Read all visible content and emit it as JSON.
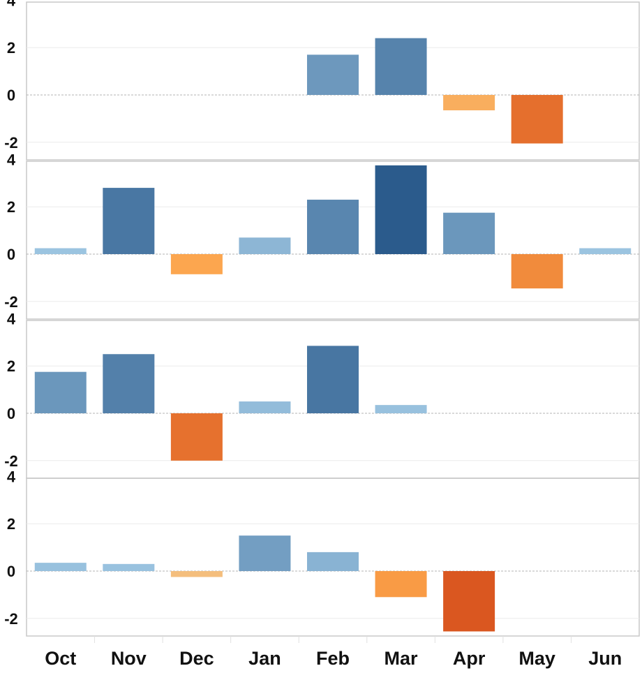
{
  "chart_data": {
    "type": "bar",
    "categories": [
      "Oct",
      "Nov",
      "Dec",
      "Jan",
      "Feb",
      "Mar",
      "Apr",
      "May",
      "Jun"
    ],
    "ylim": [
      -2.6,
      4.4
    ],
    "yticks": [
      4,
      2,
      0,
      -2
    ],
    "grid": true,
    "zero_line": "dashed",
    "color_scale": "diverging blue (positive) / orange (negative)",
    "panels": [
      {
        "values": [
          null,
          null,
          null,
          null,
          1.7,
          2.4,
          -0.65,
          -2.05,
          null
        ]
      },
      {
        "values": [
          0.25,
          2.8,
          -0.85,
          0.7,
          2.3,
          3.75,
          1.75,
          -1.45,
          0.25
        ]
      },
      {
        "values": [
          1.75,
          2.5,
          -2.0,
          0.5,
          2.85,
          0.35,
          null,
          null,
          null
        ]
      },
      {
        "values": [
          0.35,
          0.3,
          -0.25,
          1.5,
          0.8,
          -1.1,
          -2.55,
          null,
          null
        ]
      }
    ]
  }
}
